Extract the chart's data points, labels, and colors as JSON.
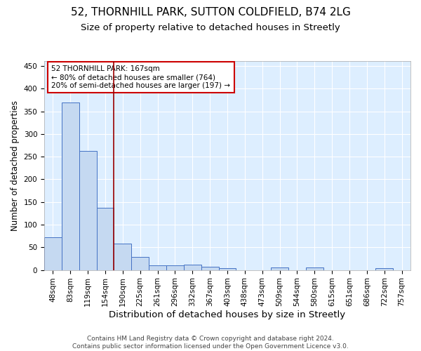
{
  "title_line1": "52, THORNHILL PARK, SUTTON COLDFIELD, B74 2LG",
  "title_line2": "Size of property relative to detached houses in Streetly",
  "xlabel": "Distribution of detached houses by size in Streetly",
  "ylabel": "Number of detached properties",
  "bar_labels": [
    "48sqm",
    "83sqm",
    "119sqm",
    "154sqm",
    "190sqm",
    "225sqm",
    "261sqm",
    "296sqm",
    "332sqm",
    "367sqm",
    "403sqm",
    "438sqm",
    "473sqm",
    "509sqm",
    "544sqm",
    "580sqm",
    "615sqm",
    "651sqm",
    "686sqm",
    "722sqm",
    "757sqm"
  ],
  "bar_values": [
    72,
    370,
    263,
    137,
    58,
    29,
    10,
    10,
    12,
    7,
    4,
    0,
    0,
    5,
    0,
    5,
    0,
    0,
    0,
    4,
    0
  ],
  "bar_color": "#c5d9f1",
  "bar_edge_color": "#4472c4",
  "background_color": "#ddeeff",
  "grid_color": "#ffffff",
  "vline_x": 3.5,
  "vline_color": "#990000",
  "annotation_line1": "52 THORNHILL PARK: 167sqm",
  "annotation_line2": "← 80% of detached houses are smaller (764)",
  "annotation_line3": "20% of semi-detached houses are larger (197) →",
  "annotation_box_color": "#ffffff",
  "annotation_box_edge": "#cc0000",
  "ylim": [
    0,
    460
  ],
  "yticks": [
    0,
    50,
    100,
    150,
    200,
    250,
    300,
    350,
    400,
    450
  ],
  "footer": "Contains HM Land Registry data © Crown copyright and database right 2024.\nContains public sector information licensed under the Open Government Licence v3.0.",
  "title1_fontsize": 11,
  "title2_fontsize": 9.5,
  "xlabel_fontsize": 9.5,
  "ylabel_fontsize": 8.5,
  "tick_fontsize": 7.5,
  "annot_fontsize": 7.5,
  "footer_fontsize": 6.5
}
